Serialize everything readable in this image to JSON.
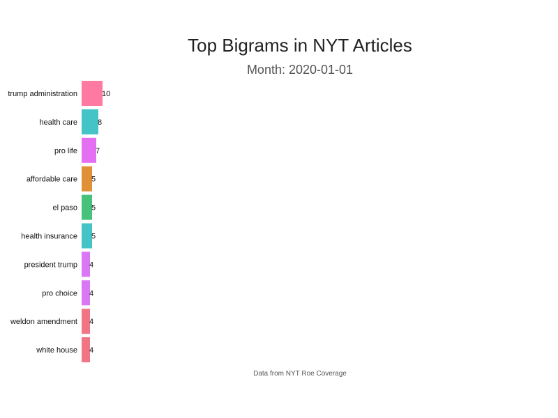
{
  "chart_data": {
    "type": "bar",
    "orientation": "horizontal",
    "title": "Top Bigrams in NYT Articles",
    "subtitle": "Month: 2020-01-01",
    "caption": "Data from NYT Roe Coverage",
    "xlabel": "",
    "ylabel": "",
    "grid": false,
    "legend": "none",
    "categories": [
      "trump administration",
      "health care",
      "pro life",
      "affordable care",
      "el paso",
      "health insurance",
      "president trump",
      "pro choice",
      "weldon amendment",
      "white house"
    ],
    "values": [
      10,
      8,
      7,
      5,
      5,
      5,
      4,
      4,
      4,
      4
    ],
    "colors": [
      "#FF7AA2",
      "#45C4C7",
      "#E56FF2",
      "#E09138",
      "#47C27A",
      "#45C4C7",
      "#D977F5",
      "#D977F5",
      "#F27586",
      "#F27586"
    ]
  }
}
